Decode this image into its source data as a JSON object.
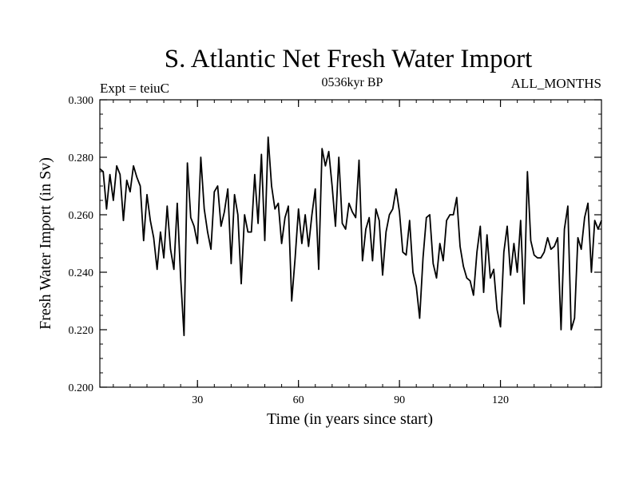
{
  "chart_data": {
    "type": "line",
    "title": "S. Atlantic Net Fresh Water Import",
    "left_label": "Expt = teiuC",
    "center_label": "0536kyr BP",
    "right_label": "ALL_MONTHS",
    "xlabel": "Time (in years since start)",
    "ylabel": "Fresh Water Import (in Sv)",
    "xlim": [
      1,
      150
    ],
    "ylim": [
      0.2,
      0.3
    ],
    "xticks": [
      30,
      60,
      90,
      120
    ],
    "yticks": [
      0.2,
      0.22,
      0.24,
      0.26,
      0.28,
      0.3
    ],
    "ytick_labels": [
      "0.200",
      "0.220",
      "0.240",
      "0.260",
      "0.280",
      "0.300"
    ],
    "series": [
      {
        "name": "S. Atlantic Net Fresh Water Import",
        "x": [
          1,
          2,
          3,
          4,
          5,
          6,
          7,
          8,
          9,
          10,
          11,
          12,
          13,
          14,
          15,
          16,
          17,
          18,
          19,
          20,
          21,
          22,
          23,
          24,
          25,
          26,
          27,
          28,
          29,
          30,
          31,
          32,
          33,
          34,
          35,
          36,
          37,
          38,
          39,
          40,
          41,
          42,
          43,
          44,
          45,
          46,
          47,
          48,
          49,
          50,
          51,
          52,
          53,
          54,
          55,
          56,
          57,
          58,
          59,
          60,
          61,
          62,
          63,
          64,
          65,
          66,
          67,
          68,
          69,
          70,
          71,
          72,
          73,
          74,
          75,
          76,
          77,
          78,
          79,
          80,
          81,
          82,
          83,
          84,
          85,
          86,
          87,
          88,
          89,
          90,
          91,
          92,
          93,
          94,
          95,
          96,
          97,
          98,
          99,
          100,
          101,
          102,
          103,
          104,
          105,
          106,
          107,
          108,
          109,
          110,
          111,
          112,
          113,
          114,
          115,
          116,
          117,
          118,
          119,
          120,
          121,
          122,
          123,
          124,
          125,
          126,
          127,
          128,
          129,
          130,
          131,
          132,
          133,
          134,
          135,
          136,
          137,
          138,
          139,
          140,
          141,
          142,
          143,
          144,
          145,
          146,
          147,
          148,
          149,
          150
        ],
        "values": [
          0.276,
          0.275,
          0.262,
          0.274,
          0.265,
          0.277,
          0.274,
          0.258,
          0.272,
          0.268,
          0.277,
          0.273,
          0.27,
          0.251,
          0.267,
          0.258,
          0.252,
          0.241,
          0.254,
          0.245,
          0.263,
          0.248,
          0.241,
          0.264,
          0.238,
          0.218,
          0.278,
          0.259,
          0.256,
          0.25,
          0.28,
          0.262,
          0.254,
          0.248,
          0.268,
          0.27,
          0.256,
          0.261,
          0.269,
          0.243,
          0.267,
          0.26,
          0.236,
          0.26,
          0.254,
          0.254,
          0.274,
          0.257,
          0.281,
          0.251,
          0.287,
          0.27,
          0.262,
          0.264,
          0.25,
          0.259,
          0.263,
          0.23,
          0.245,
          0.262,
          0.25,
          0.26,
          0.249,
          0.26,
          0.269,
          0.241,
          0.283,
          0.277,
          0.282,
          0.27,
          0.256,
          0.28,
          0.257,
          0.255,
          0.264,
          0.261,
          0.259,
          0.279,
          0.244,
          0.255,
          0.259,
          0.244,
          0.262,
          0.258,
          0.239,
          0.254,
          0.26,
          0.262,
          0.269,
          0.261,
          0.247,
          0.246,
          0.258,
          0.24,
          0.235,
          0.224,
          0.245,
          0.259,
          0.26,
          0.243,
          0.238,
          0.25,
          0.244,
          0.258,
          0.26,
          0.26,
          0.266,
          0.249,
          0.242,
          0.238,
          0.237,
          0.232,
          0.247,
          0.256,
          0.233,
          0.253,
          0.238,
          0.241,
          0.227,
          0.221,
          0.247,
          0.256,
          0.239,
          0.25,
          0.24,
          0.258,
          0.229,
          0.275,
          0.251,
          0.246,
          0.245,
          0.245,
          0.247,
          0.252,
          0.248,
          0.249,
          0.252,
          0.22,
          0.255,
          0.263,
          0.22,
          0.224,
          0.252,
          0.248,
          0.259,
          0.264,
          0.24,
          0.258,
          0.255,
          0.258
        ]
      }
    ]
  }
}
